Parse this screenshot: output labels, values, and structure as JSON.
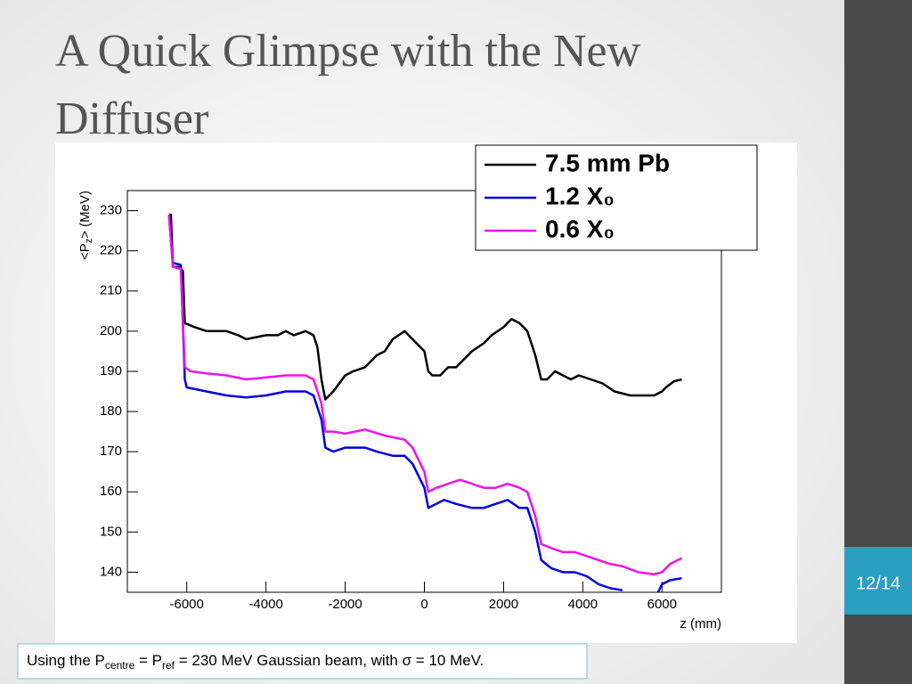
{
  "slide": {
    "title_lines": [
      "A Quick Glimpse with the New",
      "Diffuser"
    ],
    "page": "12/14",
    "caption_parts": [
      "Using the P",
      "centre",
      " = P",
      "ref",
      " = 230 MeV Gaussian beam, with σ = 10 MeV."
    ]
  },
  "chart_data": {
    "type": "line",
    "ylabel_parts": [
      "<P",
      "z",
      "> (MeV)"
    ],
    "xlabel": "z (mm)",
    "xlim": [
      -7500,
      7500
    ],
    "ylim": [
      135,
      235
    ],
    "xticks": [
      -6000,
      -4000,
      -2000,
      0,
      2000,
      4000,
      6000
    ],
    "yticks": [
      140,
      150,
      160,
      170,
      180,
      190,
      200,
      210,
      220,
      230
    ],
    "legend": "upper right",
    "series": [
      {
        "name": "7.5 mm Pb",
        "color": "#000000",
        "x": [
          -6450,
          -6400,
          -6350,
          -6200,
          -6100,
          -6050,
          -5800,
          -5500,
          -5000,
          -4700,
          -4500,
          -4000,
          -3700,
          -3500,
          -3300,
          -3000,
          -2800,
          -2700,
          -2600,
          -2500,
          -2300,
          -2000,
          -1800,
          -1500,
          -1200,
          -1000,
          -800,
          -500,
          -300,
          0,
          100,
          200,
          400,
          600,
          800,
          1000,
          1200,
          1500,
          1700,
          2000,
          2200,
          2400,
          2600,
          2800,
          2950,
          3100,
          3300,
          3500,
          3700,
          3900,
          4200,
          4500,
          4800,
          5200,
          5600,
          5800,
          6000,
          6100,
          6300,
          6500
        ],
        "values": [
          229,
          229,
          216,
          216,
          215,
          202,
          201,
          200,
          200,
          199,
          198,
          199,
          199,
          200,
          199,
          200,
          199,
          196,
          188,
          183,
          185,
          189,
          190,
          191,
          194,
          195,
          198,
          200,
          198,
          195,
          190,
          189,
          189,
          191,
          191,
          193,
          195,
          197,
          199,
          201,
          203,
          202,
          200,
          194,
          188,
          188,
          190,
          189,
          188,
          189,
          188,
          187,
          185,
          184,
          184,
          184,
          185,
          186,
          187.5,
          188
        ]
      },
      {
        "name": "1.2 X₀",
        "color": "#0000dd",
        "x": [
          -6450,
          -6350,
          -6150,
          -6050,
          -6000,
          -5500,
          -5000,
          -4500,
          -4000,
          -3500,
          -3000,
          -2800,
          -2600,
          -2500,
          -2300,
          -2000,
          -1500,
          -1200,
          -800,
          -500,
          -300,
          0,
          100,
          300,
          500,
          800,
          1200,
          1500,
          1800,
          2100,
          2400,
          2600,
          2800,
          2950,
          3200,
          3500,
          3800,
          4100,
          4400,
          4700,
          5000,
          5500,
          5900,
          6000,
          6200,
          6500
        ],
        "values": [
          229,
          217,
          216.5,
          188,
          186,
          185,
          184,
          183.5,
          184,
          185,
          185,
          184,
          178,
          171,
          170,
          171,
          171,
          170,
          169,
          169,
          167,
          161,
          156,
          157,
          158,
          157,
          156,
          156,
          157,
          158,
          156,
          156,
          150,
          143,
          141,
          140,
          140,
          139,
          137,
          136,
          135.5,
          null,
          135,
          137,
          138,
          138.5
        ]
      },
      {
        "name": "0.6 X₀",
        "color": "#ee11ee",
        "x": [
          -6450,
          -6350,
          -6150,
          -6050,
          -5900,
          -5500,
          -5000,
          -4500,
          -4000,
          -3500,
          -3000,
          -2800,
          -2600,
          -2500,
          -2300,
          -2000,
          -1500,
          -1000,
          -500,
          -300,
          0,
          100,
          300,
          600,
          900,
          1200,
          1500,
          1800,
          2100,
          2400,
          2600,
          2800,
          2950,
          3200,
          3500,
          3800,
          4100,
          4400,
          4700,
          5000,
          5400,
          5800,
          6000,
          6200,
          6500
        ],
        "values": [
          229,
          216,
          215.5,
          191,
          190,
          189.5,
          189,
          188,
          188.5,
          189,
          189,
          188,
          182,
          175,
          175,
          174.5,
          175.5,
          174,
          173,
          171,
          165,
          160,
          161,
          162,
          163,
          162,
          161,
          161,
          162,
          161,
          160,
          154,
          147,
          146,
          145,
          145,
          144,
          143,
          142,
          141.5,
          140,
          139.5,
          140,
          142,
          143.5
        ]
      }
    ]
  }
}
